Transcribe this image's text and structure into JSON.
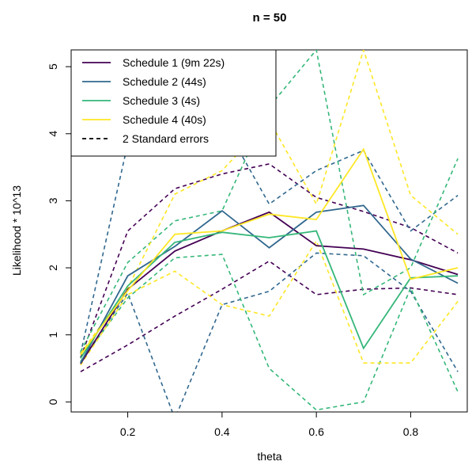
{
  "chart_data": {
    "type": "line",
    "title": "n = 50",
    "xlabel": "theta",
    "ylabel": "Likelihood * 10^13",
    "xlim": [
      0.08,
      0.92
    ],
    "ylim": [
      -0.15,
      5.25
    ],
    "x_ticks": [
      "0.2",
      "0.4",
      "0.6",
      "0.8"
    ],
    "x_tick_values": [
      0.2,
      0.4,
      0.6,
      0.8
    ],
    "y_ticks": [
      "0",
      "1",
      "2",
      "3",
      "4",
      "5"
    ],
    "y_tick_values": [
      0,
      1,
      2,
      3,
      4,
      5
    ],
    "x": [
      0.1,
      0.2,
      0.3,
      0.4,
      0.5,
      0.6,
      0.7,
      0.8,
      0.9
    ],
    "grid": false,
    "legend_position": "top-left",
    "series": [
      {
        "name": "Schedule 1 (9m 22s)",
        "color": "#440154",
        "values": [
          0.57,
          1.68,
          2.25,
          2.55,
          2.83,
          2.33,
          2.28,
          2.12,
          1.9
        ],
        "upper": [
          0.66,
          2.55,
          3.18,
          3.4,
          3.55,
          3.05,
          2.84,
          2.6,
          2.22
        ],
        "lower": [
          0.45,
          0.85,
          1.28,
          1.68,
          2.1,
          1.6,
          1.68,
          1.7,
          1.6
        ]
      },
      {
        "name": "Schedule 2 (44s)",
        "color": "#31688E",
        "values": [
          0.58,
          1.88,
          2.32,
          2.85,
          2.3,
          2.83,
          2.93,
          2.13,
          1.77
        ],
        "upper": [
          0.72,
          3.85,
          4.95,
          4.2,
          2.95,
          3.45,
          3.75,
          2.55,
          3.08
        ],
        "lower": [
          0.6,
          1.62,
          -0.25,
          1.45,
          1.65,
          2.22,
          2.18,
          1.65,
          0.45
        ]
      },
      {
        "name": "Schedule 3 (4s)",
        "color": "#35B779",
        "values": [
          0.65,
          1.73,
          2.38,
          2.53,
          2.45,
          2.55,
          0.8,
          1.85,
          1.88
        ],
        "upper": [
          0.75,
          2.08,
          2.7,
          2.85,
          4.4,
          5.25,
          1.6,
          2.0,
          3.63
        ],
        "lower": [
          0.6,
          1.55,
          2.15,
          2.2,
          0.5,
          -0.12,
          0.0,
          1.7,
          0.15
        ]
      },
      {
        "name": "Schedule 4 (40s)",
        "color": "#FDE725",
        "values": [
          0.7,
          1.66,
          2.5,
          2.55,
          2.8,
          2.72,
          3.77,
          1.83,
          2.0
        ],
        "upper": [
          0.72,
          1.7,
          3.1,
          3.45,
          4.2,
          2.95,
          5.25,
          3.08,
          2.5
        ],
        "lower": [
          0.55,
          1.6,
          1.95,
          1.45,
          1.28,
          2.4,
          0.58,
          0.58,
          1.5
        ]
      }
    ],
    "legend_entries": [
      {
        "label": "Schedule 1 (9m 22s)",
        "color": "#440154",
        "dashed": false
      },
      {
        "label": "Schedule 2 (44s)",
        "color": "#31688E",
        "dashed": false
      },
      {
        "label": "Schedule 3 (4s)",
        "color": "#35B779",
        "dashed": false
      },
      {
        "label": "Schedule 4 (40s)",
        "color": "#FDE725",
        "dashed": false
      },
      {
        "label": "2 Standard errors",
        "color": "#000000",
        "dashed": true
      }
    ]
  }
}
